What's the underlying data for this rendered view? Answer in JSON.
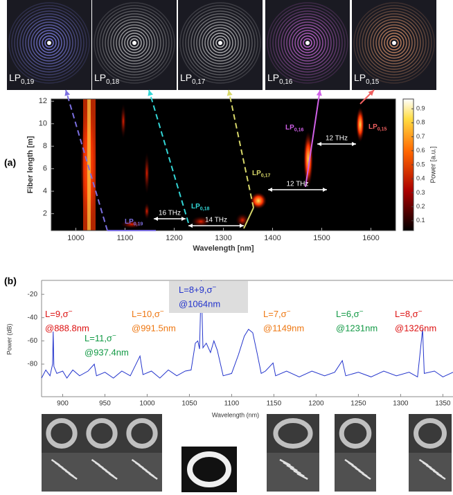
{
  "top_images": [
    {
      "base": "LP",
      "sub": "0,19"
    },
    {
      "base": "LP",
      "sub": "0,18"
    },
    {
      "base": "LP",
      "sub": "0,17"
    },
    {
      "base": "LP",
      "sub": "0,16"
    },
    {
      "base": "LP",
      "sub": "0,15"
    }
  ],
  "chart_data": [
    {
      "type": "heatmap",
      "panel": "(a)",
      "xlabel": "Wavelength [nm]",
      "ylabel": "Fiber length [m]",
      "xlim": [
        950,
        1650
      ],
      "ylim": [
        0.5,
        12.2
      ],
      "xticks": [
        1000,
        1100,
        1200,
        1300,
        1400,
        1500,
        1600
      ],
      "yticks": [
        2,
        4,
        6,
        8,
        10,
        12
      ],
      "colorbar": {
        "label": "Power [a.u.]",
        "clim": [
          0.03,
          0.97
        ],
        "ticks": [
          0.1,
          0.2,
          0.3,
          0.4,
          0.5,
          0.6,
          0.7,
          0.8,
          0.9
        ]
      },
      "annotations": [
        {
          "base": "LP",
          "sub": "0,19",
          "color": "#7b6fe0"
        },
        {
          "base": "LP",
          "sub": "0,18",
          "color": "#33d6d6"
        },
        {
          "base": "LP",
          "sub": "0,17",
          "color": "#d8d86a"
        },
        {
          "base": "LP",
          "sub": "0,16",
          "color": "#d060e8"
        },
        {
          "base": "LP",
          "sub": "0,15",
          "color": "#f06060"
        }
      ],
      "spacings": [
        "16 THz",
        "14 THz",
        "12 THz",
        "12 THz"
      ]
    },
    {
      "type": "line",
      "panel": "(b)",
      "xlabel": "Wavelength (nm)",
      "ylabel": "Power (dB)",
      "xlim": [
        875,
        1362
      ],
      "ylim": [
        -108,
        -8
      ],
      "xticks": [
        900,
        950,
        1000,
        1050,
        1100,
        1150,
        1200,
        1250,
        1300,
        1350
      ],
      "yticks": [
        -20,
        -40,
        -60,
        -80
      ],
      "series": [
        {
          "color": "#2233cc",
          "x": [
            875,
            880,
            885,
            888,
            888.8,
            889.6,
            893,
            900,
            905,
            912,
            920,
            930,
            937.4,
            940,
            950,
            960,
            970,
            980,
            991.5,
            995,
            1005,
            1015,
            1025,
            1035,
            1045,
            1052,
            1057,
            1060,
            1062,
            1064,
            1066,
            1070,
            1075,
            1079,
            1083,
            1090,
            1100,
            1108,
            1115,
            1120,
            1125,
            1130,
            1135,
            1140,
            1149,
            1152,
            1165,
            1180,
            1195,
            1210,
            1222,
            1231,
            1235,
            1250,
            1265,
            1280,
            1295,
            1310,
            1320,
            1326,
            1328,
            1340,
            1350,
            1362
          ],
          "values": [
            -92,
            -85,
            -90,
            -80,
            -52,
            -82,
            -88,
            -86,
            -92,
            -85,
            -90,
            -86,
            -80,
            -90,
            -87,
            -92,
            -86,
            -90,
            -73,
            -89,
            -86,
            -92,
            -85,
            -90,
            -86,
            -85,
            -62,
            -60,
            -67,
            -8,
            -66,
            -62,
            -70,
            -60,
            -68,
            -90,
            -88,
            -72,
            -56,
            -50,
            -53,
            -70,
            -88,
            -86,
            -79,
            -90,
            -86,
            -91,
            -86,
            -90,
            -87,
            -77,
            -90,
            -87,
            -91,
            -86,
            -90,
            -87,
            -91,
            -50,
            -88,
            -86,
            -91,
            -87
          ]
        }
      ],
      "annotations": [
        {
          "line1": "L=9,σ",
          "sup": "−",
          "line2": "@888.8nm",
          "color": "#dd1111"
        },
        {
          "line1": "L=11,σ",
          "sup": "−",
          "line2": "@937.4nm",
          "color": "#119944"
        },
        {
          "line1": "L=10,σ",
          "sup": "−",
          "line2": "@991.5nm",
          "color": "#ee7711"
        },
        {
          "line1": "L=8+9,σ",
          "sup": "−",
          "line2": "@1064nm",
          "color": "#2233cc"
        },
        {
          "line1": "L=7,σ",
          "sup": "−",
          "line2": "@1149nm",
          "color": "#ee7711"
        },
        {
          "line1": "L=6,σ",
          "sup": "−",
          "line2": "@1231nm",
          "color": "#119944"
        },
        {
          "line1": "L=8,σ",
          "sup": "−",
          "line2": "@1326nm",
          "color": "#dd1111"
        }
      ]
    }
  ]
}
